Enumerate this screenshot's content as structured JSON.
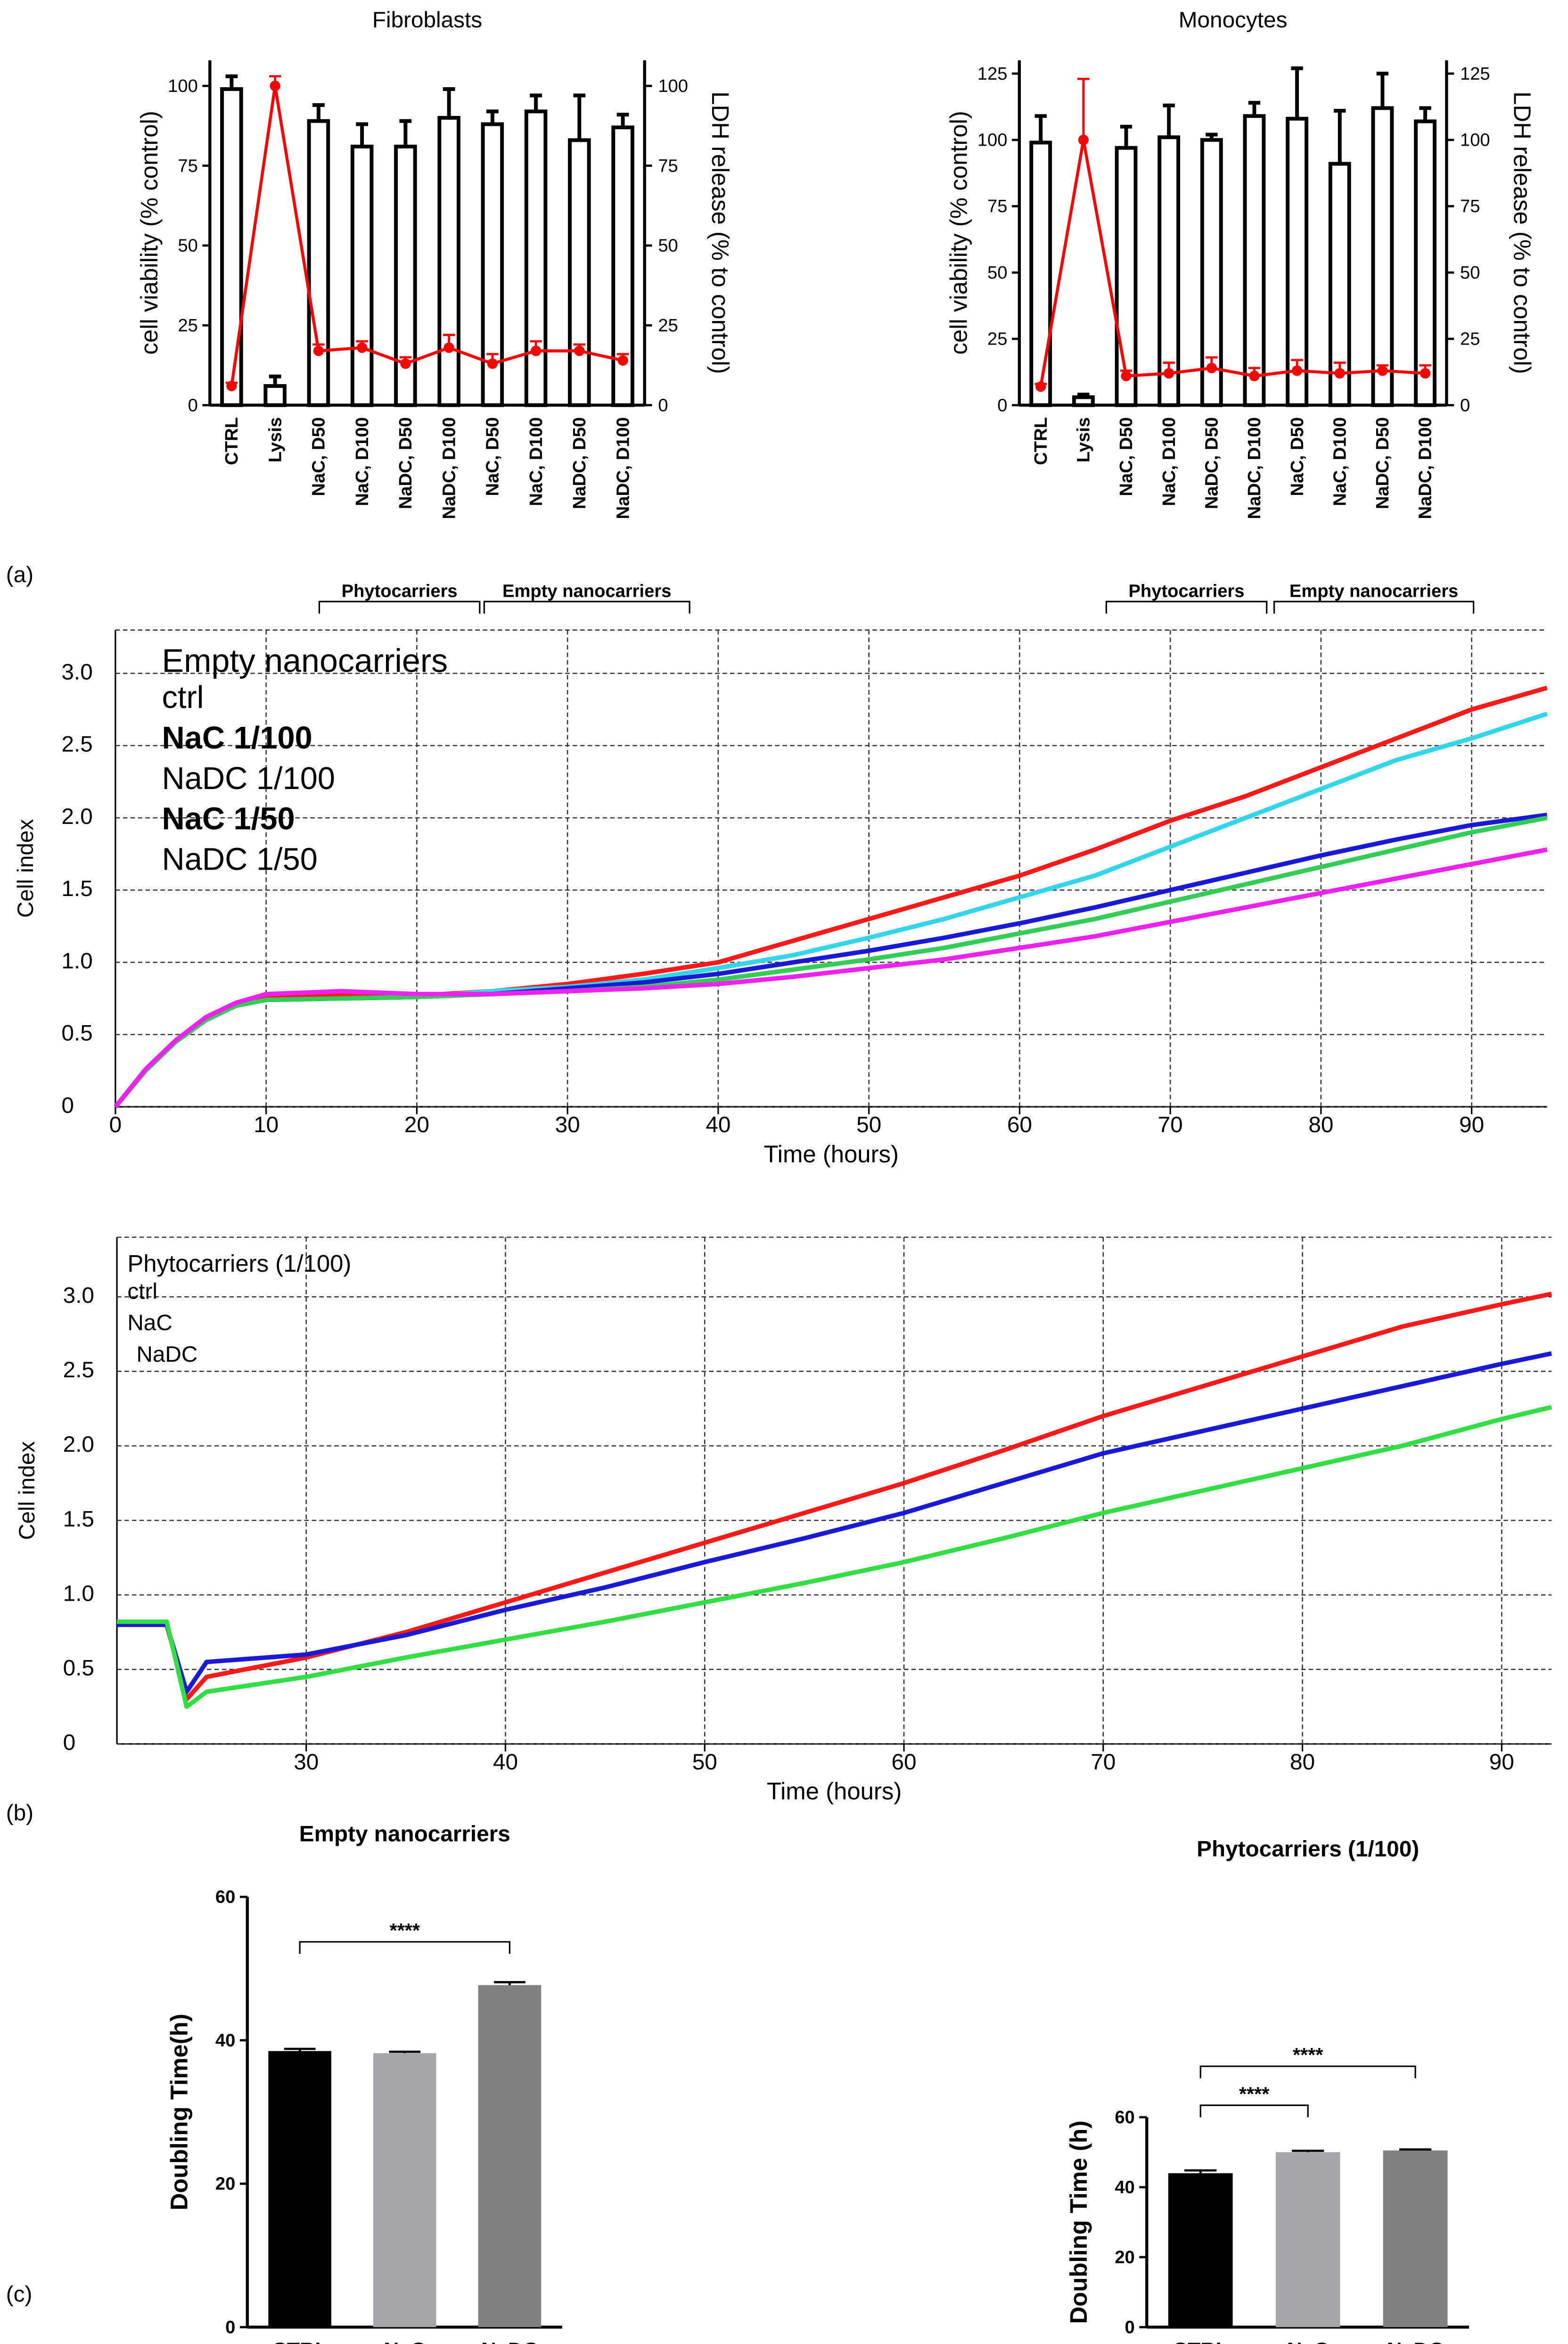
{
  "panel_labels": [
    "(a)",
    "(b)",
    "(c)"
  ],
  "chart_data": [
    {
      "type": "bar",
      "title": "Fibroblasts",
      "categories": [
        "CTRL",
        "Lysis",
        "NaC, D50",
        "NaC, D100",
        "NaDC, D50",
        "NaDC, D100",
        "NaC, D50",
        "NaC, D100",
        "NaDC, D50",
        "NaDC, D100"
      ],
      "y_label": "cell viability (% control)",
      "y2_label": "LDH release (% to control)",
      "ylim": [
        0,
        108
      ],
      "yticks": [
        0,
        25,
        50,
        75,
        100
      ],
      "y2lim": [
        0,
        108
      ],
      "y2ticks": [
        0,
        25,
        50,
        75,
        100
      ],
      "series": [
        {
          "color": "#000000",
          "values": [
            99,
            6,
            89,
            81,
            81,
            90,
            88,
            92,
            83,
            87
          ],
          "errors": [
            4,
            3,
            5,
            7,
            8,
            9,
            4,
            5,
            14,
            4
          ]
        },
        {
          "color": "#ff0000",
          "axis": "y2",
          "values": [
            6,
            100,
            17,
            18,
            13,
            18,
            13,
            17,
            17,
            14
          ],
          "errors": [
            1,
            3,
            2,
            2,
            2,
            4,
            3,
            3,
            2,
            2
          ]
        }
      ]
    },
    {
      "type": "bar",
      "title": "Monocytes",
      "categories": [
        "CTRL",
        "Lysis",
        "NaC, D50",
        "NaC, D100",
        "NaDC, D50",
        "NaDC, D100",
        "NaC, D50",
        "NaC, D100",
        "NaDC, D50",
        "NaDC, D100"
      ],
      "y_label": "cell viability (% control)",
      "y2_label": "LDH release (% to control)",
      "ylim": [
        0,
        130
      ],
      "yticks": [
        0,
        25,
        50,
        75,
        100,
        125
      ],
      "y2lim": [
        0,
        130
      ],
      "y2ticks": [
        0,
        25,
        50,
        75,
        100,
        125
      ],
      "series": [
        {
          "color": "#000000",
          "values": [
            99,
            3,
            97,
            101,
            100,
            109,
            108,
            91,
            112,
            107
          ],
          "errors": [
            10,
            1,
            8,
            12,
            2,
            5,
            19,
            20,
            13,
            5
          ]
        },
        {
          "color": "#ff0000",
          "axis": "y2",
          "values": [
            7,
            100,
            11,
            12,
            14,
            11,
            13,
            12,
            13,
            12
          ],
          "errors": [
            1,
            23,
            2,
            4,
            4,
            3,
            4,
            4,
            2,
            3
          ]
        }
      ]
    },
    {
      "type": "line",
      "legend_title": "Empty nanocarriers",
      "x_label": "Time (hours)",
      "y_label": "Cell index",
      "annotations": [
        "Phytocarriers",
        "Empty nanocarriers",
        "Phytocarriers",
        "Empty nanocarriers"
      ],
      "grid": true,
      "xlim": [
        0,
        95
      ],
      "xticks": [
        0,
        10,
        20,
        30,
        40,
        50,
        60,
        70,
        80,
        90
      ],
      "ylim": [
        0,
        3.3
      ],
      "yticks": [
        0,
        0.5,
        {
          "value": 1,
          "label": "1.0"
        },
        1.5,
        {
          "value": 2,
          "label": "2.0"
        },
        2.5,
        {
          "value": 3,
          "label": "3.0"
        }
      ],
      "x": [
        0,
        2,
        4,
        6,
        8,
        10,
        15,
        20,
        25,
        30,
        35,
        40,
        45,
        50,
        55,
        60,
        65,
        70,
        75,
        80,
        85,
        90,
        95
      ],
      "series": [
        {
          "name": "ctrl",
          "color": "#ff1a1a",
          "values": [
            0,
            0.25,
            0.45,
            0.6,
            0.7,
            0.75,
            0.77,
            0.77,
            0.8,
            0.85,
            0.92,
            1.0,
            1.15,
            1.3,
            1.45,
            1.6,
            1.78,
            1.98,
            2.15,
            2.35,
            2.55,
            2.75,
            2.9
          ]
        },
        {
          "name": "NaC 1/100",
          "color": "#33d6e8",
          "values": [
            0,
            0.25,
            0.45,
            0.6,
            0.7,
            0.74,
            0.75,
            0.76,
            0.8,
            0.83,
            0.88,
            0.96,
            1.05,
            1.17,
            1.3,
            1.45,
            1.6,
            1.8,
            2.0,
            2.2,
            2.4,
            2.55,
            2.72
          ]
        },
        {
          "name": "NaDC 1/100",
          "color": "#1a1ad6",
          "values": [
            0,
            0.25,
            0.45,
            0.6,
            0.7,
            0.74,
            0.75,
            0.76,
            0.78,
            0.82,
            0.86,
            0.92,
            1.0,
            1.08,
            1.17,
            1.27,
            1.38,
            1.5,
            1.62,
            1.74,
            1.85,
            1.95,
            2.02
          ]
        },
        {
          "name": "NaC 1/50",
          "color": "#33cc55",
          "values": [
            0,
            0.25,
            0.45,
            0.6,
            0.7,
            0.74,
            0.75,
            0.76,
            0.78,
            0.8,
            0.83,
            0.88,
            0.95,
            1.02,
            1.1,
            1.2,
            1.3,
            1.42,
            1.54,
            1.66,
            1.78,
            1.9,
            2.0
          ]
        },
        {
          "name": "NaDC 1/50",
          "color": "#ee22ee",
          "values": [
            0,
            0.26,
            0.46,
            0.62,
            0.72,
            0.78,
            0.8,
            0.78,
            0.78,
            0.8,
            0.82,
            0.85,
            0.9,
            0.96,
            1.02,
            1.1,
            1.18,
            1.28,
            1.38,
            1.48,
            1.58,
            1.68,
            1.78
          ]
        }
      ]
    },
    {
      "type": "line",
      "legend_title": "Phytocarriers (1/100)",
      "x_label": "Time (hours)",
      "y_label": "Cell index",
      "grid": true,
      "xlim": [
        20.5,
        92.5
      ],
      "xticks": [
        30,
        40,
        50,
        60,
        70,
        80,
        90
      ],
      "ylim": [
        0,
        3.4
      ],
      "yticks": [
        0,
        0.5,
        {
          "value": 1,
          "label": "1.0"
        },
        1.5,
        {
          "value": 2,
          "label": "2.0"
        },
        2.5,
        {
          "value": 3,
          "label": "3.0"
        }
      ],
      "x": [
        20.5,
        23,
        24,
        25,
        30,
        35,
        40,
        45,
        50,
        55,
        60,
        65,
        70,
        75,
        80,
        85,
        90,
        92.5
      ],
      "series": [
        {
          "name": "ctrl",
          "color": "#ff1a1a",
          "values": [
            0.8,
            0.8,
            0.3,
            0.45,
            0.58,
            0.75,
            0.95,
            1.15,
            1.35,
            1.55,
            1.75,
            1.97,
            2.2,
            2.4,
            2.6,
            2.8,
            2.95,
            3.02
          ]
        },
        {
          "name": "NaC",
          "color": "#1a1ad6",
          "values": [
            0.8,
            0.8,
            0.35,
            0.55,
            0.6,
            0.73,
            0.9,
            1.05,
            1.22,
            1.38,
            1.55,
            1.75,
            1.95,
            2.1,
            2.25,
            2.4,
            2.55,
            2.62
          ]
        },
        {
          "name": "NaDC",
          "color": "#33dd44",
          "values": [
            0.82,
            0.82,
            0.25,
            0.35,
            0.45,
            0.58,
            0.7,
            0.82,
            0.95,
            1.08,
            1.22,
            1.38,
            1.55,
            1.7,
            1.85,
            2.0,
            2.18,
            2.26
          ]
        }
      ]
    },
    {
      "type": "simple_bar",
      "title": "Empty nanocarriers",
      "y_label": "Doubling Time(h)",
      "categories": [
        "CTRL",
        "NaC",
        "NaDC"
      ],
      "values": [
        38.5,
        38.2,
        47.7
      ],
      "errors": [
        0.3,
        0.2,
        0.4
      ],
      "colors": [
        "#000000",
        "#a6a6aa",
        "#808080"
      ],
      "annotations": [
        "****"
      ],
      "ylim": [
        0,
        60
      ],
      "yticks": [
        0,
        20,
        40,
        60
      ]
    },
    {
      "type": "simple_bar",
      "title": "Phytocarriers (1/100)",
      "y_label": "Doubling Time (h)",
      "categories": [
        "CTRL",
        "NaC",
        "NaDC"
      ],
      "values": [
        44,
        50,
        50.5
      ],
      "errors": [
        0.8,
        0.4,
        0.3
      ],
      "colors": [
        "#000000",
        "#a6a6aa",
        "#808080"
      ],
      "annotations": [
        "****",
        "****"
      ],
      "ylim": [
        0,
        60
      ],
      "yticks": [
        0,
        20,
        40,
        60
      ]
    }
  ]
}
